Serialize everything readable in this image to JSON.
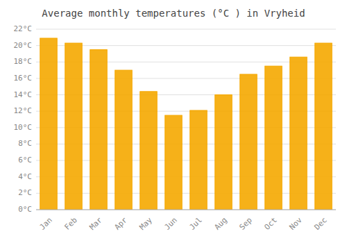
{
  "chart_data": {
    "type": "bar",
    "title": "Average monthly temperatures (°C ) in Vryheid",
    "categories": [
      "Jan",
      "Feb",
      "Mar",
      "Apr",
      "May",
      "Jun",
      "Jul",
      "Aug",
      "Sep",
      "Oct",
      "Nov",
      "Dec"
    ],
    "values": [
      20.9,
      20.3,
      19.5,
      17.0,
      14.4,
      11.5,
      12.1,
      14.0,
      16.5,
      17.5,
      18.6,
      20.3
    ],
    "color": "#F5A800",
    "ylim": [
      0,
      22
    ],
    "yticks": [
      {
        "value": 0,
        "label": "0°C"
      },
      {
        "value": 2,
        "label": "2°C"
      },
      {
        "value": 4,
        "label": "4°C"
      },
      {
        "value": 6,
        "label": "6°C"
      },
      {
        "value": 8,
        "label": "8°C"
      },
      {
        "value": 10,
        "label": "10°C"
      },
      {
        "value": 12,
        "label": "12°C"
      },
      {
        "value": 14,
        "label": "14°C"
      },
      {
        "value": 16,
        "label": "16°C"
      },
      {
        "value": 18,
        "label": "18°C"
      },
      {
        "value": 20,
        "label": "20°C"
      },
      {
        "value": 22,
        "label": "22°C"
      }
    ],
    "grid": true
  }
}
